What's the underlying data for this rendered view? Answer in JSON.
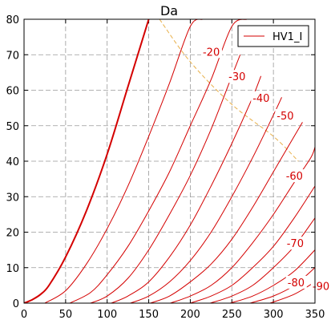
{
  "chart_data": {
    "type": "line",
    "title": "Da",
    "xlabel": "",
    "ylabel": "",
    "xlim": [
      0,
      350
    ],
    "ylim": [
      0,
      80
    ],
    "x_ticks": [
      0,
      50,
      100,
      150,
      200,
      250,
      300,
      350
    ],
    "y_ticks": [
      0,
      10,
      20,
      30,
      40,
      50,
      60,
      70,
      80
    ],
    "grid": true,
    "legend": {
      "position": "top-right",
      "entries": [
        "HV1_I"
      ]
    },
    "colors": {
      "curve": "#d40000",
      "load_line": "#e8b04a",
      "grid": "#999999"
    },
    "grid_curves": [
      {
        "grid_voltage": "0",
        "thick": true,
        "x": [
          0,
          10,
          20,
          30,
          50,
          75,
          100,
          125,
          150
        ],
        "y": [
          0,
          1,
          2.5,
          5,
          13,
          26,
          42,
          61,
          80
        ]
      },
      {
        "x": [
          25,
          50,
          75,
          100,
          125,
          150,
          175,
          200,
          215
        ],
        "y": [
          0,
          3.5,
          11,
          21,
          33,
          47,
          62,
          78,
          80
        ]
      },
      {
        "x": [
          55,
          80,
          100,
          125,
          150,
          175,
          200,
          225,
          250,
          268
        ],
        "y": [
          0,
          3,
          8,
          16,
          26,
          37,
          50,
          63,
          78,
          80
        ]
      },
      {
        "label": "-20",
        "x": [
          80,
          100,
          125,
          150,
          175,
          200,
          225,
          250,
          260
        ],
        "y": [
          0,
          2,
          7,
          15,
          25,
          36,
          49,
          64,
          70
        ]
      },
      {
        "label": "-30",
        "x": [
          105,
          125,
          150,
          175,
          200,
          225,
          250,
          275,
          285
        ],
        "y": [
          0,
          2,
          6,
          13,
          22,
          33,
          45,
          58,
          64
        ]
      },
      {
        "label": "-40",
        "x": [
          128,
          150,
          175,
          200,
          225,
          250,
          275,
          300,
          310
        ],
        "y": [
          0,
          2,
          6,
          12,
          20,
          30,
          41,
          53,
          58
        ]
      },
      {
        "label": "-50",
        "x": [
          152,
          175,
          200,
          225,
          250,
          275,
          300,
          325,
          335
        ],
        "y": [
          0,
          2,
          6,
          11,
          18,
          27,
          37,
          47,
          51
        ]
      },
      {
        "label": "-60",
        "x": [
          176,
          200,
          225,
          250,
          275,
          300,
          325,
          345,
          350
        ],
        "y": [
          0,
          2,
          5,
          10,
          17,
          25,
          34,
          41,
          44
        ]
      },
      {
        "x": [
          200,
          225,
          250,
          275,
          300,
          325,
          350
        ],
        "y": [
          0,
          2,
          5,
          10,
          16,
          24,
          33
        ]
      },
      {
        "label": "-70",
        "x": [
          224,
          250,
          275,
          300,
          325,
          350
        ],
        "y": [
          0,
          2,
          5,
          10,
          16,
          24
        ]
      },
      {
        "x": [
          248,
          275,
          300,
          325,
          350
        ],
        "y": [
          0,
          2,
          5,
          9,
          15
        ]
      },
      {
        "label": "-80",
        "x": [
          272,
          300,
          325,
          350
        ],
        "y": [
          0,
          2,
          5,
          10
        ]
      },
      {
        "label": "-90",
        "x": [
          296,
          325,
          350
        ],
        "y": [
          0,
          2.5,
          6
        ]
      }
    ],
    "load_line": {
      "x": [
        163,
        200,
        250,
        300,
        330
      ],
      "y": [
        80,
        68,
        56,
        47,
        40
      ]
    },
    "curve_labels": [
      {
        "text": "-20",
        "x": 215,
        "y": 70
      },
      {
        "text": "-30",
        "x": 246,
        "y": 63
      },
      {
        "text": "-40",
        "x": 275,
        "y": 57
      },
      {
        "text": "-50",
        "x": 304,
        "y": 52
      },
      {
        "text": "-60",
        "x": 315,
        "y": 35
      },
      {
        "text": "-70",
        "x": 316,
        "y": 16
      },
      {
        "text": "-80",
        "x": 317,
        "y": 5
      },
      {
        "text": "-90",
        "x": 347,
        "y": 4
      }
    ]
  }
}
